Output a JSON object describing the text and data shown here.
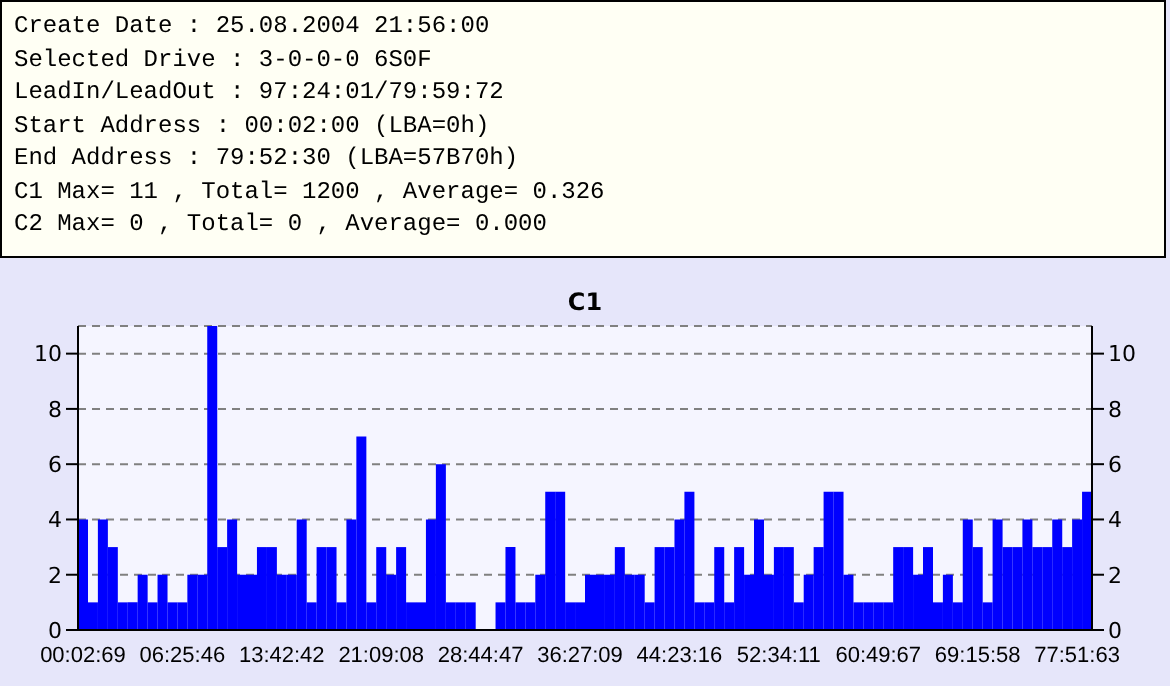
{
  "chart_data": {
    "type": "bar",
    "title": "C1",
    "annotations": [
      "Create Date : 25.08.2004 21:56:00",
      "Selected Drive : 3-0-0-0 6S0F",
      "LeadIn/LeadOut : 97:24:01/79:59:72",
      "Start Address : 00:02:00 (LBA=0h)",
      "End Address : 79:52:30 (LBA=57B70h)",
      "C1 Max= 11 , Total= 1200 , Average= 0.326",
      "C2 Max= 0 , Total= 0 , Average= 0.000"
    ],
    "categories": [
      "00:02:69",
      null,
      null,
      null,
      null,
      null,
      null,
      null,
      null,
      null,
      "06:25:46",
      null,
      null,
      null,
      null,
      null,
      null,
      null,
      null,
      null,
      "13:42:42",
      null,
      null,
      null,
      null,
      null,
      null,
      null,
      null,
      null,
      "21:09:08",
      null,
      null,
      null,
      null,
      null,
      null,
      null,
      null,
      null,
      "28:44:47",
      null,
      null,
      null,
      null,
      null,
      null,
      null,
      null,
      null,
      "36:27:09",
      null,
      null,
      null,
      null,
      null,
      null,
      null,
      null,
      null,
      "44:23:16",
      null,
      null,
      null,
      null,
      null,
      null,
      null,
      null,
      null,
      "52:34:11",
      null,
      null,
      null,
      null,
      null,
      null,
      null,
      null,
      null,
      "60:49:67",
      null,
      null,
      null,
      null,
      null,
      null,
      null,
      null,
      null,
      "69:15:58",
      null,
      null,
      null,
      null,
      null,
      null,
      null,
      null,
      null,
      "77:51:63",
      null
    ],
    "values": [
      4,
      1,
      4,
      3,
      1,
      1,
      2,
      1,
      2,
      1,
      1,
      2,
      2,
      11,
      3,
      4,
      2,
      2,
      3,
      3,
      2,
      2,
      4,
      1,
      3,
      3,
      1,
      4,
      7,
      1,
      3,
      2,
      3,
      1,
      1,
      4,
      6,
      1,
      1,
      1,
      0,
      0,
      1,
      3,
      1,
      1,
      2,
      5,
      5,
      1,
      1,
      2,
      2,
      2,
      3,
      2,
      2,
      1,
      3,
      3,
      4,
      5,
      1,
      1,
      3,
      1,
      3,
      2,
      4,
      2,
      3,
      3,
      1,
      2,
      3,
      5,
      5,
      2,
      1,
      1,
      1,
      1,
      3,
      3,
      2,
      3,
      1,
      2,
      1,
      4,
      3,
      1,
      4,
      3,
      3,
      4,
      3,
      3,
      4,
      3,
      4,
      5
    ],
    "color": "#0000ff",
    "ylim": [
      0,
      11
    ],
    "yticks": [
      0,
      2,
      4,
      6,
      8,
      10
    ],
    "y2lim": [
      0,
      11
    ],
    "y2ticks": [
      0,
      2,
      4,
      6,
      8,
      10
    ],
    "grid": "y"
  }
}
